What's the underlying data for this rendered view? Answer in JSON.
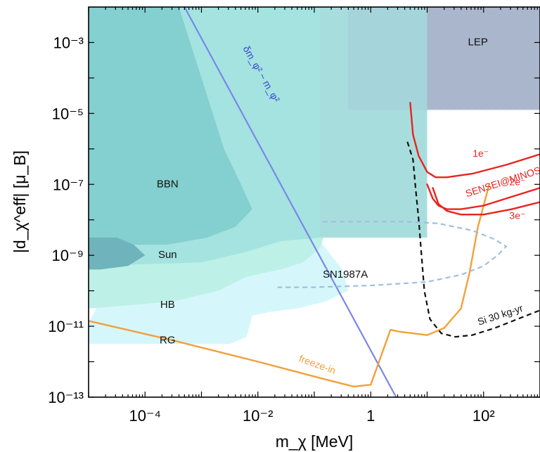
{
  "chart_data": {
    "type": "area",
    "title": "",
    "xlabel": "m_χ [MeV]",
    "ylabel": "|d_χ^eff|  [μ_B]",
    "xscale": "log",
    "yscale": "log",
    "xlim_log10": [
      -5.0,
      3.0
    ],
    "ylim_log10": [
      -13.0,
      -2.0
    ],
    "xticks": [
      {
        "log10": -4,
        "label": "10⁻⁴"
      },
      {
        "log10": -2,
        "label": "10⁻²"
      },
      {
        "log10": 0,
        "label": "1"
      },
      {
        "log10": 2,
        "label": "10²"
      }
    ],
    "yticks": [
      {
        "log10": -3,
        "label": "10⁻³"
      },
      {
        "log10": -5,
        "label": "10⁻⁵"
      },
      {
        "log10": -7,
        "label": "10⁻⁷"
      },
      {
        "log10": -9,
        "label": "10⁻⁹"
      },
      {
        "log10": -11,
        "label": "10⁻¹¹"
      },
      {
        "log10": -13,
        "label": "10⁻¹³"
      }
    ],
    "regions": [
      {
        "label": "",
        "color": "#d5f7fb",
        "points": [
          [
            -5.0,
            -10.9
          ],
          [
            -4.7,
            -10.0
          ],
          [
            -4.0,
            -9.6
          ],
          [
            -3.0,
            -9.3
          ],
          [
            -2.2,
            -8.9
          ],
          [
            -1.6,
            -8.5
          ],
          [
            -1.2,
            -8.4
          ],
          [
            -0.9,
            -8.6
          ],
          [
            -0.5,
            -9.4
          ],
          [
            -0.4,
            -10.0
          ],
          [
            -0.8,
            -10.3
          ],
          [
            -1.3,
            -10.5
          ],
          [
            -1.8,
            -10.6
          ],
          [
            -2.1,
            -10.7
          ],
          [
            -2.2,
            -11.3
          ],
          [
            -2.5,
            -11.5
          ],
          [
            -5.0,
            -11.5
          ]
        ]
      },
      {
        "label": "",
        "color": "#bdf0e6",
        "points": [
          [
            -5.0,
            -9.3
          ],
          [
            -4.0,
            -9.2
          ],
          [
            -3.5,
            -9.0
          ],
          [
            -3.0,
            -8.8
          ],
          [
            -2.6,
            -8.6
          ],
          [
            -2.1,
            -8.3
          ],
          [
            -1.9,
            -8.0
          ],
          [
            -1.7,
            -7.5
          ],
          [
            -1.6,
            -7.2
          ],
          [
            -1.4,
            -6.9
          ],
          [
            -1.1,
            -6.9
          ],
          [
            -0.9,
            -7.5
          ],
          [
            -0.8,
            -8.3
          ],
          [
            -0.9,
            -8.8
          ],
          [
            -1.2,
            -9.2
          ],
          [
            -1.6,
            -9.4
          ],
          [
            -2.2,
            -9.6
          ],
          [
            -2.7,
            -10.0
          ],
          [
            -3.5,
            -10.3
          ],
          [
            -5.0,
            -10.5
          ]
        ]
      },
      {
        "label": "",
        "color": "#a4e3e0",
        "points": [
          [
            -5.0,
            -2.0
          ],
          [
            -0.9,
            -2.0
          ],
          [
            -0.9,
            -8.5
          ],
          [
            -1.6,
            -8.6
          ],
          [
            -2.2,
            -8.9
          ],
          [
            -3.0,
            -9.2
          ],
          [
            -5.0,
            -9.3
          ]
        ]
      },
      {
        "label": "",
        "color": "#a7dedd",
        "points": [
          [
            -0.9,
            -2.0
          ],
          [
            1.0,
            -2.0
          ],
          [
            1.0,
            -8.5
          ],
          [
            -0.9,
            -8.5
          ]
        ]
      },
      {
        "label": "",
        "color": "#84cfcf",
        "points": [
          [
            -5.0,
            -2.0
          ],
          [
            -3.4,
            -2.0
          ],
          [
            -3.0,
            -4.0
          ],
          [
            -2.6,
            -6.0
          ],
          [
            -2.3,
            -7.0
          ],
          [
            -2.1,
            -7.7
          ],
          [
            -2.4,
            -8.2
          ],
          [
            -2.9,
            -8.5
          ],
          [
            -3.6,
            -8.7
          ],
          [
            -4.4,
            -8.7
          ],
          [
            -5.0,
            -8.6
          ]
        ]
      },
      {
        "label": "",
        "color": "#6fb3bc",
        "points": [
          [
            -5.0,
            -8.5
          ],
          [
            -4.5,
            -8.5
          ],
          [
            -4.2,
            -8.7
          ],
          [
            -4.0,
            -9.0
          ],
          [
            -4.3,
            -9.3
          ],
          [
            -4.8,
            -9.4
          ],
          [
            -5.0,
            -9.4
          ]
        ]
      },
      {
        "label": "",
        "color": "#a5d4da",
        "points": [
          [
            -0.4,
            -2.0
          ],
          [
            1.0,
            -2.0
          ],
          [
            1.0,
            -4.9
          ],
          [
            -0.4,
            -4.9
          ]
        ]
      },
      {
        "label": "",
        "color": "#a9b6cc",
        "points": [
          [
            1.0,
            -2.0
          ],
          [
            3.0,
            -2.0
          ],
          [
            3.0,
            -4.9
          ],
          [
            1.0,
            -4.9
          ]
        ]
      }
    ],
    "region_labels": [
      {
        "text": "LEP",
        "x": 1.9,
        "y": -3.0
      },
      {
        "text": "BBN",
        "x": -3.6,
        "y": -7.0
      },
      {
        "text": "Sun",
        "x": -3.6,
        "y": -9.0
      },
      {
        "text": "HB",
        "x": -3.6,
        "y": -10.4
      },
      {
        "text": "RG",
        "x": -3.6,
        "y": -11.4
      },
      {
        "text": "SN1987A",
        "x": -0.45,
        "y": -9.55
      }
    ],
    "curves": [
      {
        "name": "δm_φ² ~ m_φ²",
        "color": "#7b86e8",
        "style": "solid",
        "width": 2.2,
        "points": [
          [
            -3.3,
            -2.0
          ],
          [
            0.45,
            -13.0
          ]
        ]
      },
      {
        "name": "freeze-in",
        "color": "#f2a03a",
        "style": "solid",
        "width": 2.4,
        "points": [
          [
            -5.0,
            -10.85
          ],
          [
            -3.5,
            -11.4
          ],
          [
            -2.0,
            -12.0
          ],
          [
            -0.8,
            -12.5
          ],
          [
            -0.3,
            -12.7
          ],
          [
            0.0,
            -12.65
          ],
          [
            0.35,
            -11.1
          ],
          [
            0.5,
            -11.15
          ],
          [
            1.0,
            -11.25
          ],
          [
            1.3,
            -11.05
          ],
          [
            1.6,
            -10.5
          ],
          [
            1.75,
            -9.5
          ],
          [
            1.9,
            -8.2
          ],
          [
            2.1,
            -7.0
          ]
        ]
      },
      {
        "name": "1e⁻",
        "color": "#e8241f",
        "style": "solid",
        "width": 2.4,
        "points": [
          [
            0.7,
            -4.7
          ],
          [
            0.75,
            -5.6
          ],
          [
            0.85,
            -6.2
          ],
          [
            1.0,
            -6.65
          ],
          [
            1.15,
            -6.8
          ],
          [
            1.35,
            -6.8
          ],
          [
            1.8,
            -6.7
          ],
          [
            2.4,
            -6.45
          ],
          [
            3.0,
            -6.15
          ]
        ]
      },
      {
        "name": "2e⁻",
        "color": "#e8241f",
        "style": "solid",
        "width": 2.4,
        "points": [
          [
            1.0,
            -7.0
          ],
          [
            1.1,
            -7.4
          ],
          [
            1.2,
            -7.6
          ],
          [
            1.35,
            -7.7
          ],
          [
            1.6,
            -7.7
          ],
          [
            2.0,
            -7.6
          ],
          [
            2.5,
            -7.35
          ],
          [
            3.0,
            -7.1
          ]
        ]
      },
      {
        "name": "3e⁻",
        "color": "#e8241f",
        "style": "solid",
        "width": 2.4,
        "points": [
          [
            1.1,
            -7.1
          ],
          [
            1.2,
            -7.55
          ],
          [
            1.35,
            -7.75
          ],
          [
            1.6,
            -7.85
          ],
          [
            2.0,
            -7.85
          ],
          [
            2.5,
            -7.7
          ],
          [
            3.0,
            -7.5
          ]
        ]
      },
      {
        "name": "Si 30 kg-yr",
        "color": "#111111",
        "style": "dashed",
        "width": 2.2,
        "points": [
          [
            0.65,
            -5.8
          ],
          [
            0.75,
            -6.3
          ],
          [
            0.8,
            -7.2
          ],
          [
            0.85,
            -8.0
          ],
          [
            0.9,
            -9.0
          ],
          [
            0.95,
            -10.0
          ],
          [
            1.05,
            -10.8
          ],
          [
            1.25,
            -11.2
          ],
          [
            1.5,
            -11.3
          ],
          [
            1.8,
            -11.25
          ],
          [
            2.2,
            -11.05
          ],
          [
            2.6,
            -10.8
          ],
          [
            3.0,
            -10.55
          ]
        ]
      },
      {
        "name": "",
        "color": "#9fbfe0",
        "style": "dashed",
        "width": 2.2,
        "points": [
          [
            -0.85,
            -8.05
          ],
          [
            -0.2,
            -8.05
          ],
          [
            0.6,
            -8.05
          ],
          [
            1.2,
            -8.1
          ],
          [
            1.8,
            -8.3
          ],
          [
            2.2,
            -8.55
          ],
          [
            2.4,
            -8.75
          ],
          [
            2.25,
            -9.0
          ],
          [
            2.0,
            -9.3
          ],
          [
            1.6,
            -9.55
          ],
          [
            1.0,
            -9.75
          ],
          [
            0.0,
            -9.85
          ],
          [
            -1.0,
            -9.9
          ],
          [
            -1.65,
            -9.9
          ]
        ]
      }
    ],
    "curve_labels": [
      {
        "text": "δm_φ² ~ m_φ²",
        "x": -1.95,
        "y": -3.9,
        "color": "#3a46d6",
        "angle": 60
      },
      {
        "text": "freeze-in",
        "x": -0.95,
        "y": -12.1,
        "color": "#f2a03a",
        "angle": 20
      },
      {
        "text": "1e⁻",
        "x": 1.95,
        "y": -6.15,
        "color": "#e8241f",
        "angle": 0
      },
      {
        "text": "SENSEI@MINOS",
        "x": 2.35,
        "y": -6.95,
        "color": "#e8241f",
        "angle": -18
      },
      {
        "text": "2e⁻",
        "x": 2.6,
        "y": -6.95,
        "color": "#e8241f",
        "angle": 0
      },
      {
        "text": "3e⁻",
        "x": 2.6,
        "y": -7.9,
        "color": "#e8241f",
        "angle": 0
      },
      {
        "text": "Si 30 kg-yr",
        "x": 2.3,
        "y": -10.7,
        "color": "#111111",
        "angle": -18
      }
    ]
  }
}
